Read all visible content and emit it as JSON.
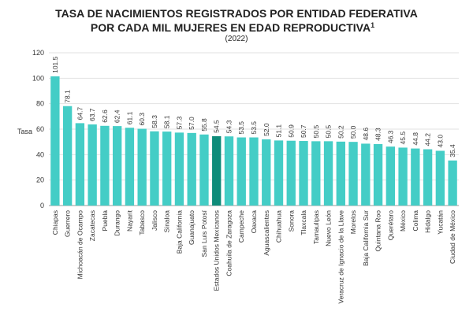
{
  "chart_data": {
    "type": "bar",
    "title_line1": "Tasa de nacimientos registrados por entidad federativa",
    "title_line2": "por cada mil mujeres en edad reproductiva",
    "title_superscript": "1",
    "subtitle": "(2022)",
    "xlabel": "",
    "ylabel": "Tasa",
    "ylim": [
      0,
      120
    ],
    "yticks": [
      0,
      20,
      40,
      60,
      80,
      100,
      120
    ],
    "grid": true,
    "colors": {
      "bar": "#44CDC6",
      "highlight": "#0E8C7A",
      "grid": "#E2E2E2"
    },
    "highlight_category": "Estados Unidos Mexicanos",
    "categories": [
      "Chiapas",
      "Guerrero",
      "Michoacán de Ocampo",
      "Zacatecas",
      "Puebla",
      "Durango",
      "Nayarit",
      "Tabasco",
      "Jalisco",
      "Sinaloa",
      "Baja California",
      "Guanajuato",
      "San Luis Potosí",
      "Estados Unidos Mexicanos",
      "Coahuila de Zaragoza",
      "Campeche",
      "Oaxaca",
      "Aguascalientes",
      "Chihuahua",
      "Sonora",
      "Tlaxcala",
      "Tamaulipas",
      "Nuevo León",
      "Veracruz de Ignacio de la Llave",
      "Morelos",
      "Baja California Sur",
      "Quintana Roo",
      "Querétaro",
      "México",
      "Colima",
      "Hidalgo",
      "Yucatán",
      "Ciudad de México"
    ],
    "values": [
      101.5,
      78.1,
      64.7,
      63.7,
      62.6,
      62.4,
      61.1,
      60.3,
      58.3,
      58.1,
      57.3,
      57.0,
      55.8,
      54.5,
      54.3,
      53.5,
      53.5,
      52.0,
      51.1,
      50.9,
      50.7,
      50.5,
      50.5,
      50.2,
      50.0,
      48.6,
      48.3,
      46.3,
      45.5,
      44.8,
      44.2,
      43.0,
      35.4
    ]
  }
}
